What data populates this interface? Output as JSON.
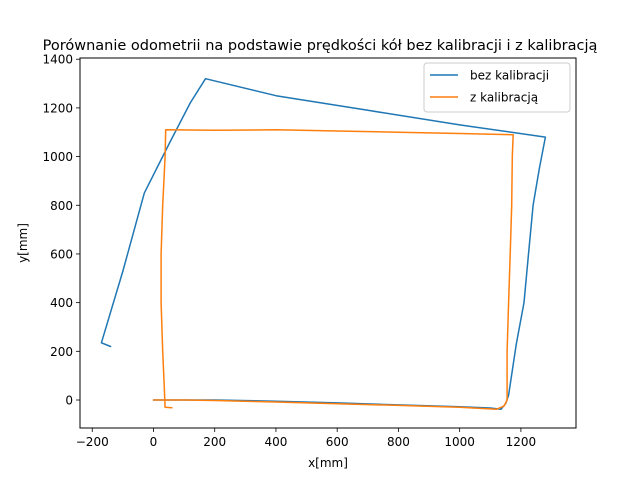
{
  "chart_data": {
    "type": "line",
    "title": "Porównanie odometrii na podstawie prędkości kół bez kalibracji i z kalibracją",
    "xlabel": "x[mm]",
    "ylabel": "y[mm]",
    "xlim": [
      -240,
      1380
    ],
    "ylim": [
      -115,
      1405
    ],
    "xticks": [
      -200,
      0,
      200,
      400,
      600,
      800,
      1000,
      1200
    ],
    "yticks": [
      0,
      200,
      400,
      600,
      800,
      1000,
      1200,
      1400
    ],
    "grid": false,
    "legend_position": "upper right",
    "series": [
      {
        "name": "bez kalibracji",
        "color": "#1f77b4",
        "points": [
          [
            0,
            0
          ],
          [
            200,
            0
          ],
          [
            400,
            -5
          ],
          [
            600,
            -12
          ],
          [
            800,
            -20
          ],
          [
            1000,
            -28
          ],
          [
            1100,
            -33
          ],
          [
            1135,
            -38
          ],
          [
            1150,
            -15
          ],
          [
            1160,
            20
          ],
          [
            1185,
            230
          ],
          [
            1210,
            400
          ],
          [
            1225,
            600
          ],
          [
            1240,
            800
          ],
          [
            1260,
            950
          ],
          [
            1280,
            1080
          ],
          [
            1000,
            1130
          ],
          [
            700,
            1190
          ],
          [
            400,
            1250
          ],
          [
            170,
            1320
          ],
          [
            120,
            1220
          ],
          [
            50,
            1050
          ],
          [
            -30,
            850
          ],
          [
            -100,
            530
          ],
          [
            -170,
            235
          ],
          [
            -140,
            220
          ]
        ]
      },
      {
        "name": "z kalibracją",
        "color": "#ff7f0e",
        "points": [
          [
            0,
            0
          ],
          [
            100,
            0
          ],
          [
            200,
            -2
          ],
          [
            400,
            -8
          ],
          [
            600,
            -15
          ],
          [
            800,
            -22
          ],
          [
            1000,
            -30
          ],
          [
            1120,
            -38
          ],
          [
            1145,
            -25
          ],
          [
            1155,
            0
          ],
          [
            1155,
            200
          ],
          [
            1160,
            400
          ],
          [
            1165,
            600
          ],
          [
            1170,
            800
          ],
          [
            1172,
            1000
          ],
          [
            1175,
            1090
          ],
          [
            1000,
            1095
          ],
          [
            800,
            1100
          ],
          [
            600,
            1105
          ],
          [
            400,
            1110
          ],
          [
            200,
            1108
          ],
          [
            40,
            1110
          ],
          [
            38,
            1000
          ],
          [
            30,
            800
          ],
          [
            25,
            600
          ],
          [
            25,
            400
          ],
          [
            30,
            200
          ],
          [
            35,
            60
          ],
          [
            38,
            -30
          ],
          [
            60,
            -32
          ]
        ]
      }
    ]
  }
}
